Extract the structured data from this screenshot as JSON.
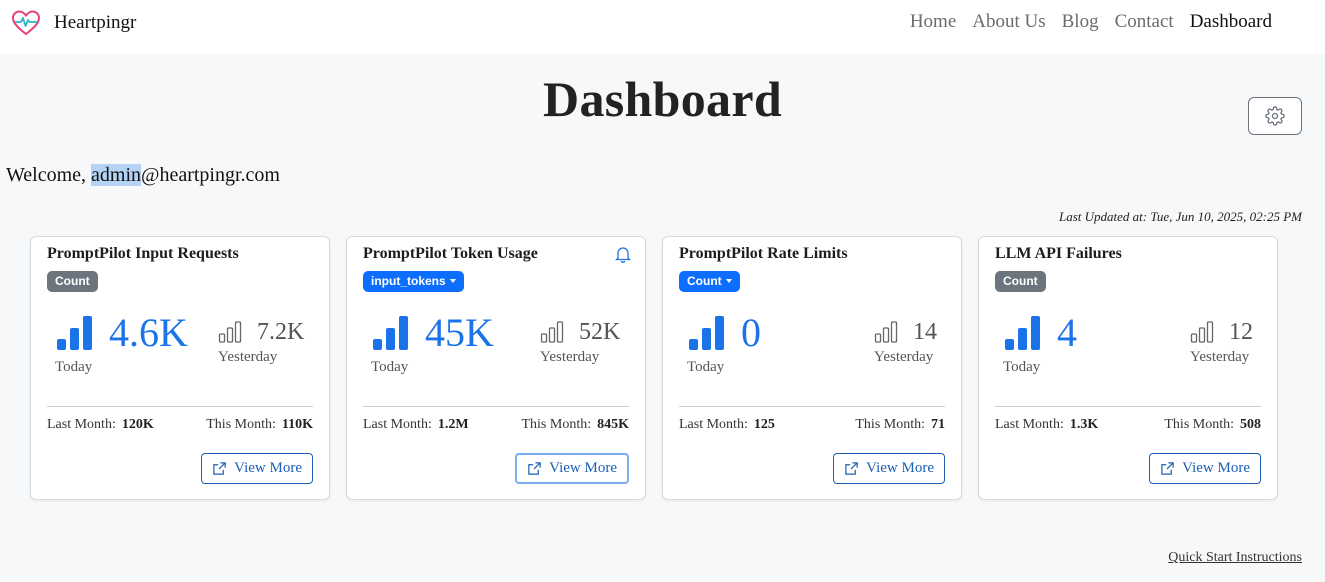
{
  "nav": {
    "brand": "Heartpingr",
    "links": [
      "Home",
      "About Us",
      "Blog",
      "Contact",
      "Dashboard"
    ],
    "active": "Dashboard"
  },
  "page": {
    "title": "Dashboard",
    "welcome_prefix": "Welcome, ",
    "welcome_highlight": "admin",
    "welcome_suffix": "@heartpingr.com",
    "last_updated": "Last Updated at: Tue, Jun 10, 2025, 02:25 PM",
    "quick_start": "Quick Start Instructions"
  },
  "colors": {
    "accent": "#1a73e8",
    "brand_heart": "#e6457a",
    "badge_gray": "#6c757d",
    "badge_blue": "#0d6efd"
  },
  "cards": [
    {
      "title": "PromptPilot Input Requests",
      "badge": "Count",
      "badge_dropdown": false,
      "today_value": "4.6K",
      "today_label": "Today",
      "yesterday_value": "7.2K",
      "yesterday_label": "Yesterday",
      "last_month_label": "Last Month:",
      "last_month_value": "120K",
      "this_month_label": "This Month:",
      "this_month_value": "110K",
      "view_more": "View More"
    },
    {
      "title": "PromptPilot Token Usage",
      "badge": "input_tokens",
      "badge_dropdown": true,
      "today_value": "45K",
      "today_label": "Today",
      "yesterday_value": "52K",
      "yesterday_label": "Yesterday",
      "last_month_label": "Last Month:",
      "last_month_value": "1.2M",
      "this_month_label": "This Month:",
      "this_month_value": "845K",
      "view_more": "View More"
    },
    {
      "title": "PromptPilot Rate Limits",
      "badge": "Count",
      "badge_dropdown": true,
      "today_value": "0",
      "today_label": "Today",
      "yesterday_value": "14",
      "yesterday_label": "Yesterday",
      "last_month_label": "Last Month:",
      "last_month_value": "125",
      "this_month_label": "This Month:",
      "this_month_value": "71",
      "view_more": "View More"
    },
    {
      "title": "LLM API Failures",
      "badge": "Count",
      "badge_dropdown": false,
      "today_value": "4",
      "today_label": "Today",
      "yesterday_value": "12",
      "yesterday_label": "Yesterday",
      "last_month_label": "Last Month:",
      "last_month_value": "1.3K",
      "this_month_label": "This Month:",
      "this_month_value": "508",
      "view_more": "View More"
    }
  ]
}
